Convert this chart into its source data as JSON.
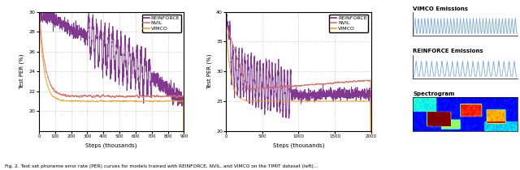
{
  "fig_width": 6.4,
  "fig_height": 2.1,
  "dpi": 100,
  "plot1": {
    "ylim": [
      18,
      30
    ],
    "yticks": [
      20,
      22,
      24,
      26,
      28,
      30
    ],
    "xlim": [
      0,
      900
    ],
    "xticks": [
      0,
      100,
      200,
      300,
      400,
      500,
      600,
      700,
      800,
      900
    ],
    "xlabel": "Steps (thousands)",
    "ylabel": "Test PER (%)"
  },
  "plot2": {
    "ylim": [
      20,
      40
    ],
    "yticks": [
      20,
      25,
      30,
      35,
      40
    ],
    "xlim": [
      0,
      2000
    ],
    "xticks": [
      0,
      500,
      1000,
      1500,
      2000
    ],
    "xlabel": "Steps (thousands)",
    "ylabel": "Test PER (%)"
  },
  "reinforce_color": "#7B2D8B",
  "nvil_color": "#D9706A",
  "vimco_color": "#E8A020",
  "legend_labels": [
    "REINFORCE",
    "NVIL",
    "VIMCO"
  ],
  "emissions_color": "#7AA8D4",
  "caption": "Fig. 2. Test set phoneme error rate (PER) curves for models trained with REINFORCE, NVIL, and VIMCO on the TIMIT dataset (left)..."
}
